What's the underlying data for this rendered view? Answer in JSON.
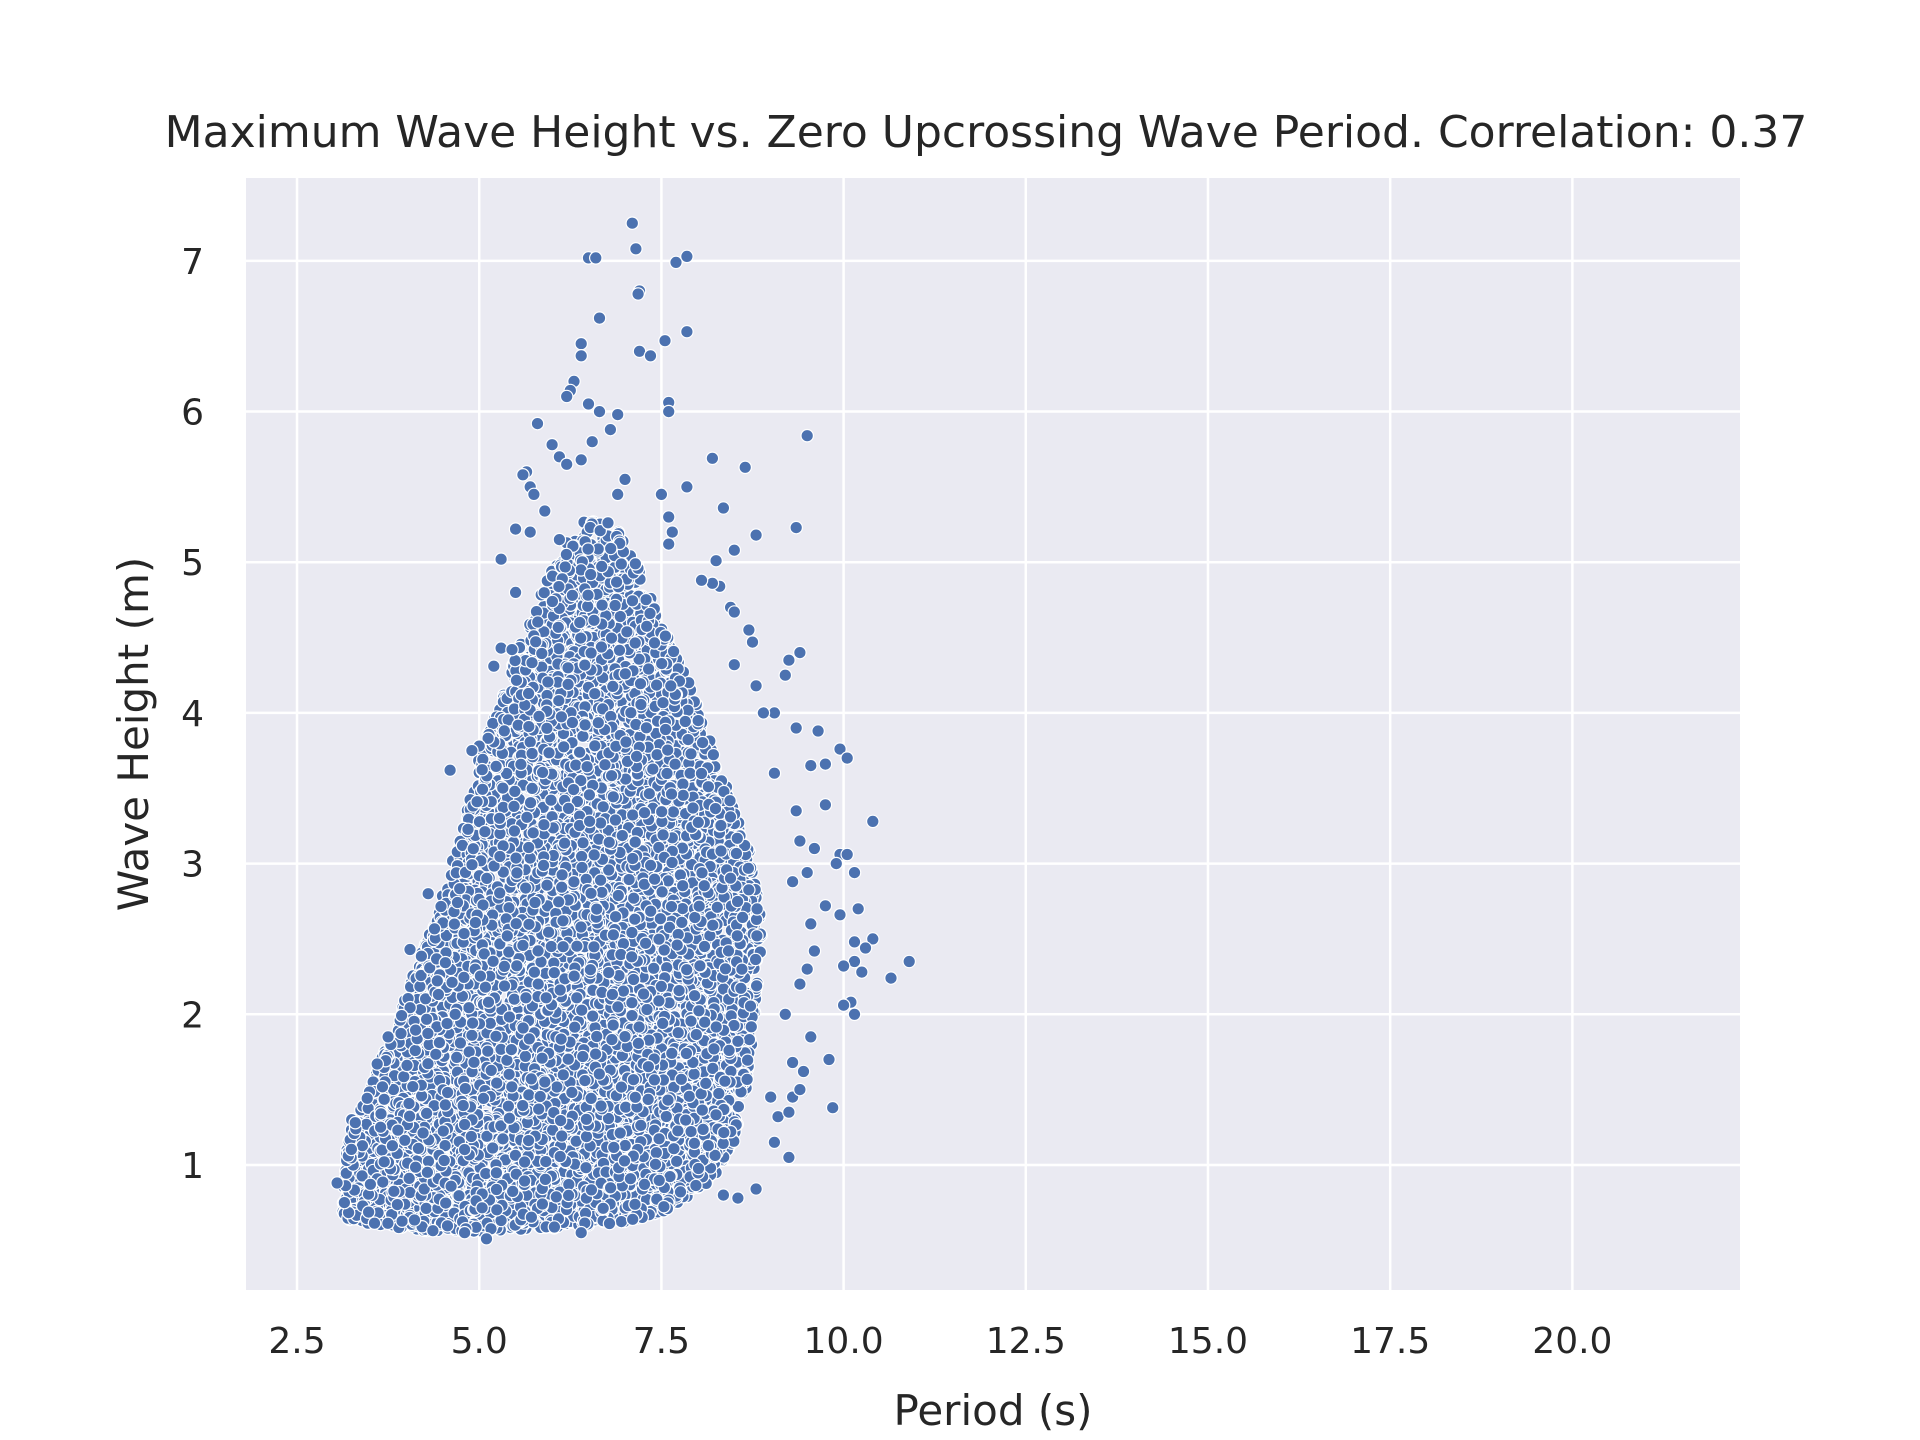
{
  "chart_data": {
    "type": "scatter",
    "title": "Maximum Wave Height vs. Zero Upcrossing Wave Period. Correlation: 0.37",
    "xlabel": "Period (s)",
    "ylabel": "Wave Height (m)",
    "xlim": [
      1.8,
      22.3
    ],
    "ylim": [
      0.17,
      7.55
    ],
    "x_ticks": [
      2.5,
      5.0,
      7.5,
      10.0,
      12.5,
      15.0,
      17.5,
      20.0
    ],
    "x_tick_labels": [
      "2.5",
      "5.0",
      "7.5",
      "10.0",
      "12.5",
      "15.0",
      "17.5",
      "20.0"
    ],
    "y_ticks": [
      1,
      2,
      3,
      4,
      5,
      6,
      7
    ],
    "y_tick_labels": [
      "1",
      "2",
      "3",
      "4",
      "5",
      "6",
      "7"
    ],
    "grid": true,
    "background": "#eaeaf2",
    "point_color": "#4c72b0",
    "series": [
      {
        "points": [
          [
            7.1,
            7.25
          ],
          [
            7.15,
            7.08
          ],
          [
            6.5,
            7.02
          ],
          [
            6.6,
            7.02
          ],
          [
            7.7,
            6.99
          ],
          [
            7.85,
            7.03
          ],
          [
            7.2,
            6.8
          ],
          [
            7.18,
            6.78
          ],
          [
            7.85,
            6.53
          ],
          [
            6.65,
            6.62
          ],
          [
            7.55,
            6.47
          ],
          [
            6.4,
            6.45
          ],
          [
            7.2,
            6.4
          ],
          [
            7.35,
            6.37
          ],
          [
            6.4,
            6.37
          ],
          [
            6.3,
            6.2
          ],
          [
            6.25,
            6.14
          ],
          [
            6.2,
            6.1
          ],
          [
            7.6,
            6.06
          ],
          [
            6.5,
            6.05
          ],
          [
            7.6,
            6.0
          ],
          [
            6.65,
            6.0
          ],
          [
            6.9,
            5.98
          ],
          [
            9.5,
            5.84
          ],
          [
            6.55,
            5.8
          ],
          [
            6.8,
            5.88
          ],
          [
            5.8,
            5.92
          ],
          [
            6.0,
            5.78
          ],
          [
            6.1,
            5.7
          ],
          [
            6.4,
            5.68
          ],
          [
            8.2,
            5.69
          ],
          [
            6.2,
            5.65
          ],
          [
            5.65,
            5.6
          ],
          [
            5.6,
            5.58
          ],
          [
            8.65,
            5.63
          ],
          [
            5.7,
            5.5
          ],
          [
            7.0,
            5.55
          ],
          [
            7.85,
            5.5
          ],
          [
            5.75,
            5.45
          ],
          [
            6.9,
            5.45
          ],
          [
            7.5,
            5.45
          ],
          [
            5.9,
            5.34
          ],
          [
            8.35,
            5.36
          ],
          [
            7.6,
            5.3
          ],
          [
            5.5,
            5.22
          ],
          [
            5.7,
            5.2
          ],
          [
            7.65,
            5.2
          ],
          [
            9.35,
            5.23
          ],
          [
            8.8,
            5.18
          ],
          [
            6.1,
            5.15
          ],
          [
            7.6,
            5.12
          ],
          [
            8.5,
            5.08
          ],
          [
            5.3,
            5.02
          ],
          [
            8.25,
            5.01
          ],
          [
            8.3,
            4.84
          ],
          [
            8.2,
            4.86
          ],
          [
            5.5,
            4.8
          ],
          [
            8.05,
            4.88
          ],
          [
            8.45,
            4.7
          ],
          [
            8.5,
            4.67
          ],
          [
            8.7,
            4.55
          ],
          [
            8.75,
            4.47
          ],
          [
            9.4,
            4.4
          ],
          [
            9.25,
            4.35
          ],
          [
            9.2,
            4.25
          ],
          [
            8.5,
            4.32
          ],
          [
            8.8,
            4.18
          ],
          [
            5.2,
            4.31
          ],
          [
            5.3,
            4.43
          ],
          [
            5.45,
            4.42
          ],
          [
            9.05,
            4.0
          ],
          [
            8.9,
            4.0
          ],
          [
            9.35,
            3.9
          ],
          [
            9.65,
            3.88
          ],
          [
            9.95,
            3.76
          ],
          [
            10.05,
            3.7
          ],
          [
            9.75,
            3.66
          ],
          [
            9.55,
            3.65
          ],
          [
            9.05,
            3.6
          ],
          [
            4.6,
            3.62
          ],
          [
            5.0,
            3.78
          ],
          [
            4.9,
            3.75
          ],
          [
            9.35,
            3.35
          ],
          [
            9.75,
            3.39
          ],
          [
            10.4,
            3.28
          ],
          [
            9.4,
            3.15
          ],
          [
            9.6,
            3.1
          ],
          [
            9.95,
            3.06
          ],
          [
            10.05,
            3.06
          ],
          [
            9.9,
            3.0
          ],
          [
            10.15,
            2.94
          ],
          [
            9.5,
            2.94
          ],
          [
            9.3,
            2.88
          ],
          [
            9.75,
            2.72
          ],
          [
            10.2,
            2.7
          ],
          [
            9.95,
            2.66
          ],
          [
            4.3,
            2.8
          ],
          [
            4.05,
            2.43
          ],
          [
            9.55,
            2.6
          ],
          [
            10.4,
            2.5
          ],
          [
            10.15,
            2.48
          ],
          [
            9.6,
            2.42
          ],
          [
            10.3,
            2.44
          ],
          [
            10.15,
            2.35
          ],
          [
            10.25,
            2.28
          ],
          [
            10.0,
            2.32
          ],
          [
            9.5,
            2.3
          ],
          [
            10.65,
            2.24
          ],
          [
            10.9,
            2.35
          ],
          [
            9.4,
            2.2
          ],
          [
            10.1,
            2.08
          ],
          [
            10.15,
            2.0
          ],
          [
            10.0,
            2.06
          ],
          [
            9.2,
            2.0
          ],
          [
            9.55,
            1.85
          ],
          [
            9.8,
            1.7
          ],
          [
            9.3,
            1.68
          ],
          [
            9.45,
            1.62
          ],
          [
            9.3,
            1.45
          ],
          [
            9.4,
            1.5
          ],
          [
            9.0,
            1.45
          ],
          [
            9.85,
            1.38
          ],
          [
            9.1,
            1.32
          ],
          [
            9.25,
            1.35
          ],
          [
            9.05,
            1.15
          ],
          [
            9.25,
            1.05
          ],
          [
            8.8,
            0.84
          ],
          [
            8.55,
            0.78
          ],
          [
            8.35,
            0.8
          ],
          [
            6.4,
            0.55
          ],
          [
            4.8,
            0.55
          ],
          [
            5.1,
            0.51
          ],
          [
            3.15,
            0.75
          ],
          [
            3.05,
            0.88
          ],
          [
            3.25,
            1.3
          ],
          [
            3.3,
            1.28
          ],
          [
            3.6,
            1.67
          ],
          [
            3.75,
            1.85
          ]
        ]
      }
    ],
    "dense_region": {
      "description_of_shape_in_data_units": "dense cloud of roughly 9000 observations",
      "polygon": [
        [
          3.1,
          0.65
        ],
        [
          3.2,
          1.2
        ],
        [
          3.5,
          1.5
        ],
        [
          3.9,
          2.0
        ],
        [
          4.2,
          2.4
        ],
        [
          4.5,
          2.8
        ],
        [
          4.8,
          3.3
        ],
        [
          5.0,
          3.7
        ],
        [
          5.3,
          4.1
        ],
        [
          5.6,
          4.5
        ],
        [
          5.9,
          4.85
        ],
        [
          6.2,
          5.15
        ],
        [
          6.5,
          5.3
        ],
        [
          6.85,
          5.25
        ],
        [
          7.15,
          5.0
        ],
        [
          7.5,
          4.6
        ],
        [
          7.8,
          4.3
        ],
        [
          8.1,
          3.9
        ],
        [
          8.4,
          3.5
        ],
        [
          8.7,
          3.1
        ],
        [
          8.9,
          2.6
        ],
        [
          8.8,
          2.1
        ],
        [
          8.7,
          1.6
        ],
        [
          8.55,
          1.2
        ],
        [
          8.2,
          0.9
        ],
        [
          7.6,
          0.7
        ],
        [
          7.0,
          0.62
        ],
        [
          6.0,
          0.58
        ],
        [
          5.0,
          0.56
        ],
        [
          4.2,
          0.56
        ],
        [
          3.6,
          0.6
        ]
      ],
      "count": 9000
    }
  }
}
